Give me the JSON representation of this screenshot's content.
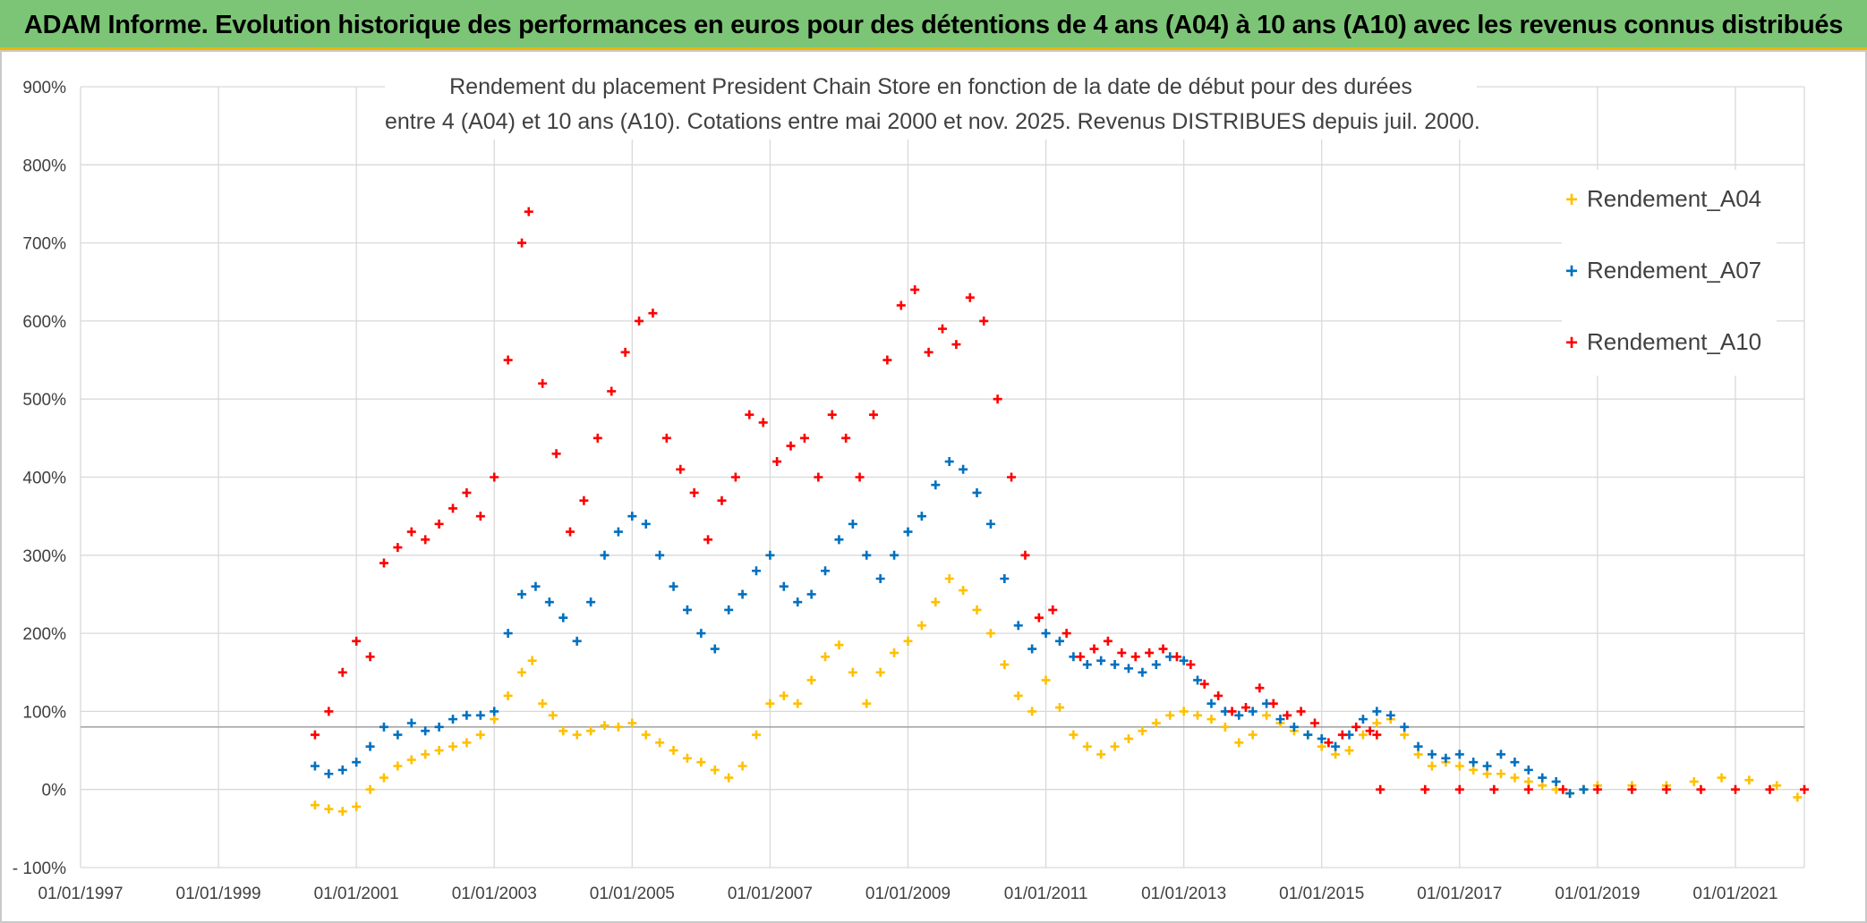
{
  "header": {
    "title": "ADAM Informe. Evolution historique des performances en euros pour des détentions de 4 ans (A04) à 10 ans (A10) avec les revenus connus distribués"
  },
  "chart_data": {
    "type": "scatter",
    "title_lines": [
      "Rendement du placement President Chain Store  en fonction de la date de début pour des durées",
      "entre 4 (A04) et 10 ans (A10). Cotations entre mai 2000 et nov. 2025. Revenus DISTRIBUES depuis juil. 2000."
    ],
    "xlabel": "",
    "ylabel": "",
    "x_tick_labels": [
      "01/01/1997",
      "01/01/1999",
      "01/01/2001",
      "01/01/2003",
      "01/01/2005",
      "01/01/2007",
      "01/01/2009",
      "01/01/2011",
      "01/01/2013",
      "01/01/2015",
      "01/01/2017",
      "01/01/2019",
      "01/01/2021"
    ],
    "y_tick_labels": [
      "- 100%",
      "0%",
      "100%",
      "200%",
      "300%",
      "400%",
      "500%",
      "600%",
      "700%",
      "800%",
      "900%"
    ],
    "xlim": [
      1997.0,
      2022.0
    ],
    "ylim": [
      -100,
      900
    ],
    "grid": true,
    "reference_line_y": 80,
    "legend_position": "right",
    "series": [
      {
        "name": "Rendement_A04",
        "color": "#ffc000",
        "points": [
          [
            2000.4,
            -20
          ],
          [
            2000.6,
            -25
          ],
          [
            2000.8,
            -28
          ],
          [
            2001.0,
            -22
          ],
          [
            2001.2,
            0
          ],
          [
            2001.4,
            15
          ],
          [
            2001.6,
            30
          ],
          [
            2001.8,
            38
          ],
          [
            2002.0,
            45
          ],
          [
            2002.2,
            50
          ],
          [
            2002.4,
            55
          ],
          [
            2002.6,
            60
          ],
          [
            2002.8,
            70
          ],
          [
            2003.0,
            90
          ],
          [
            2003.2,
            120
          ],
          [
            2003.4,
            150
          ],
          [
            2003.55,
            165
          ],
          [
            2003.7,
            110
          ],
          [
            2003.85,
            95
          ],
          [
            2004.0,
            75
          ],
          [
            2004.2,
            70
          ],
          [
            2004.4,
            75
          ],
          [
            2004.6,
            82
          ],
          [
            2004.8,
            80
          ],
          [
            2005.0,
            85
          ],
          [
            2005.2,
            70
          ],
          [
            2005.4,
            60
          ],
          [
            2005.6,
            50
          ],
          [
            2005.8,
            40
          ],
          [
            2006.0,
            35
          ],
          [
            2006.2,
            25
          ],
          [
            2006.4,
            15
          ],
          [
            2006.6,
            30
          ],
          [
            2006.8,
            70
          ],
          [
            2007.0,
            110
          ],
          [
            2007.2,
            120
          ],
          [
            2007.4,
            110
          ],
          [
            2007.6,
            140
          ],
          [
            2007.8,
            170
          ],
          [
            2008.0,
            185
          ],
          [
            2008.2,
            150
          ],
          [
            2008.4,
            110
          ],
          [
            2008.6,
            150
          ],
          [
            2008.8,
            175
          ],
          [
            2009.0,
            190
          ],
          [
            2009.2,
            210
          ],
          [
            2009.4,
            240
          ],
          [
            2009.6,
            270
          ],
          [
            2009.8,
            255
          ],
          [
            2010.0,
            230
          ],
          [
            2010.2,
            200
          ],
          [
            2010.4,
            160
          ],
          [
            2010.6,
            120
          ],
          [
            2010.8,
            100
          ],
          [
            2011.0,
            140
          ],
          [
            2011.2,
            105
          ],
          [
            2011.4,
            70
          ],
          [
            2011.6,
            55
          ],
          [
            2011.8,
            45
          ],
          [
            2012.0,
            55
          ],
          [
            2012.2,
            65
          ],
          [
            2012.4,
            75
          ],
          [
            2012.6,
            85
          ],
          [
            2012.8,
            95
          ],
          [
            2013.0,
            100
          ],
          [
            2013.2,
            95
          ],
          [
            2013.4,
            90
          ],
          [
            2013.6,
            80
          ],
          [
            2013.8,
            60
          ],
          [
            2014.0,
            70
          ],
          [
            2014.2,
            95
          ],
          [
            2014.4,
            85
          ],
          [
            2014.6,
            75
          ],
          [
            2014.8,
            70
          ],
          [
            2015.0,
            55
          ],
          [
            2015.2,
            45
          ],
          [
            2015.4,
            50
          ],
          [
            2015.6,
            70
          ],
          [
            2015.8,
            85
          ],
          [
            2016.0,
            90
          ],
          [
            2016.2,
            70
          ],
          [
            2016.4,
            45
          ],
          [
            2016.6,
            30
          ],
          [
            2016.8,
            35
          ],
          [
            2017.0,
            30
          ],
          [
            2017.2,
            25
          ],
          [
            2017.4,
            20
          ],
          [
            2017.6,
            20
          ],
          [
            2017.8,
            15
          ],
          [
            2018.0,
            10
          ],
          [
            2018.2,
            5
          ],
          [
            2018.4,
            0
          ],
          [
            2018.6,
            -5
          ],
          [
            2018.8,
            0
          ],
          [
            2019.0,
            5
          ],
          [
            2019.5,
            5
          ],
          [
            2020.0,
            5
          ],
          [
            2020.4,
            10
          ],
          [
            2020.8,
            15
          ],
          [
            2021.2,
            12
          ],
          [
            2021.6,
            5
          ],
          [
            2021.9,
            -10
          ]
        ]
      },
      {
        "name": "Rendement_A07",
        "color": "#0070c0",
        "points": [
          [
            2000.4,
            30
          ],
          [
            2000.6,
            20
          ],
          [
            2000.8,
            25
          ],
          [
            2001.0,
            35
          ],
          [
            2001.2,
            55
          ],
          [
            2001.4,
            80
          ],
          [
            2001.6,
            70
          ],
          [
            2001.8,
            85
          ],
          [
            2002.0,
            75
          ],
          [
            2002.2,
            80
          ],
          [
            2002.4,
            90
          ],
          [
            2002.6,
            95
          ],
          [
            2002.8,
            95
          ],
          [
            2003.0,
            100
          ],
          [
            2003.2,
            200
          ],
          [
            2003.4,
            250
          ],
          [
            2003.6,
            260
          ],
          [
            2003.8,
            240
          ],
          [
            2004.0,
            220
          ],
          [
            2004.2,
            190
          ],
          [
            2004.4,
            240
          ],
          [
            2004.6,
            300
          ],
          [
            2004.8,
            330
          ],
          [
            2005.0,
            350
          ],
          [
            2005.2,
            340
          ],
          [
            2005.4,
            300
          ],
          [
            2005.6,
            260
          ],
          [
            2005.8,
            230
          ],
          [
            2006.0,
            200
          ],
          [
            2006.2,
            180
          ],
          [
            2006.4,
            230
          ],
          [
            2006.6,
            250
          ],
          [
            2006.8,
            280
          ],
          [
            2007.0,
            300
          ],
          [
            2007.2,
            260
          ],
          [
            2007.4,
            240
          ],
          [
            2007.6,
            250
          ],
          [
            2007.8,
            280
          ],
          [
            2008.0,
            320
          ],
          [
            2008.2,
            340
          ],
          [
            2008.4,
            300
          ],
          [
            2008.6,
            270
          ],
          [
            2008.8,
            300
          ],
          [
            2009.0,
            330
          ],
          [
            2009.2,
            350
          ],
          [
            2009.4,
            390
          ],
          [
            2009.6,
            420
          ],
          [
            2009.8,
            410
          ],
          [
            2010.0,
            380
          ],
          [
            2010.2,
            340
          ],
          [
            2010.4,
            270
          ],
          [
            2010.6,
            210
          ],
          [
            2010.8,
            180
          ],
          [
            2011.0,
            200
          ],
          [
            2011.2,
            190
          ],
          [
            2011.4,
            170
          ],
          [
            2011.6,
            160
          ],
          [
            2011.8,
            165
          ],
          [
            2012.0,
            160
          ],
          [
            2012.2,
            155
          ],
          [
            2012.4,
            150
          ],
          [
            2012.6,
            160
          ],
          [
            2012.8,
            170
          ],
          [
            2013.0,
            165
          ],
          [
            2013.2,
            140
          ],
          [
            2013.4,
            110
          ],
          [
            2013.6,
            100
          ],
          [
            2013.8,
            95
          ],
          [
            2014.0,
            100
          ],
          [
            2014.2,
            110
          ],
          [
            2014.4,
            90
          ],
          [
            2014.6,
            80
          ],
          [
            2014.8,
            70
          ],
          [
            2015.0,
            65
          ],
          [
            2015.2,
            55
          ],
          [
            2015.4,
            70
          ],
          [
            2015.6,
            90
          ],
          [
            2015.8,
            100
          ],
          [
            2016.0,
            95
          ],
          [
            2016.2,
            80
          ],
          [
            2016.4,
            55
          ],
          [
            2016.6,
            45
          ],
          [
            2016.8,
            40
          ],
          [
            2017.0,
            45
          ],
          [
            2017.2,
            35
          ],
          [
            2017.4,
            30
          ],
          [
            2017.6,
            45
          ],
          [
            2017.8,
            35
          ],
          [
            2018.0,
            25
          ],
          [
            2018.2,
            15
          ],
          [
            2018.4,
            10
          ],
          [
            2018.6,
            -5
          ],
          [
            2018.8,
            0
          ]
        ]
      },
      {
        "name": "Rendement_A10",
        "color": "#ff0000",
        "points": [
          [
            2000.4,
            70
          ],
          [
            2000.6,
            100
          ],
          [
            2000.8,
            150
          ],
          [
            2001.0,
            190
          ],
          [
            2001.2,
            170
          ],
          [
            2001.4,
            290
          ],
          [
            2001.6,
            310
          ],
          [
            2001.8,
            330
          ],
          [
            2002.0,
            320
          ],
          [
            2002.2,
            340
          ],
          [
            2002.4,
            360
          ],
          [
            2002.6,
            380
          ],
          [
            2002.8,
            350
          ],
          [
            2003.0,
            400
          ],
          [
            2003.2,
            550
          ],
          [
            2003.4,
            700
          ],
          [
            2003.5,
            740
          ],
          [
            2003.7,
            520
          ],
          [
            2003.9,
            430
          ],
          [
            2004.1,
            330
          ],
          [
            2004.3,
            370
          ],
          [
            2004.5,
            450
          ],
          [
            2004.7,
            510
          ],
          [
            2004.9,
            560
          ],
          [
            2005.1,
            600
          ],
          [
            2005.3,
            610
          ],
          [
            2005.5,
            450
          ],
          [
            2005.7,
            410
          ],
          [
            2005.9,
            380
          ],
          [
            2006.1,
            320
          ],
          [
            2006.3,
            370
          ],
          [
            2006.5,
            400
          ],
          [
            2006.7,
            480
          ],
          [
            2006.9,
            470
          ],
          [
            2007.1,
            420
          ],
          [
            2007.3,
            440
          ],
          [
            2007.5,
            450
          ],
          [
            2007.7,
            400
          ],
          [
            2007.9,
            480
          ],
          [
            2008.1,
            450
          ],
          [
            2008.3,
            400
          ],
          [
            2008.5,
            480
          ],
          [
            2008.7,
            550
          ],
          [
            2008.9,
            620
          ],
          [
            2009.1,
            640
          ],
          [
            2009.3,
            560
          ],
          [
            2009.5,
            590
          ],
          [
            2009.7,
            570
          ],
          [
            2009.9,
            630
          ],
          [
            2010.1,
            600
          ],
          [
            2010.3,
            500
          ],
          [
            2010.5,
            400
          ],
          [
            2010.7,
            300
          ],
          [
            2010.9,
            220
          ],
          [
            2011.1,
            230
          ],
          [
            2011.3,
            200
          ],
          [
            2011.5,
            170
          ],
          [
            2011.7,
            180
          ],
          [
            2011.9,
            190
          ],
          [
            2012.1,
            175
          ],
          [
            2012.3,
            170
          ],
          [
            2012.5,
            175
          ],
          [
            2012.7,
            180
          ],
          [
            2012.9,
            170
          ],
          [
            2013.1,
            160
          ],
          [
            2013.3,
            135
          ],
          [
            2013.5,
            120
          ],
          [
            2013.7,
            100
          ],
          [
            2013.9,
            105
          ],
          [
            2014.1,
            130
          ],
          [
            2014.3,
            110
          ],
          [
            2014.5,
            95
          ],
          [
            2014.7,
            100
          ],
          [
            2014.9,
            85
          ],
          [
            2015.1,
            60
          ],
          [
            2015.3,
            70
          ],
          [
            2015.5,
            80
          ],
          [
            2015.7,
            75
          ],
          [
            2015.8,
            70
          ],
          [
            2015.85,
            0
          ],
          [
            2016.5,
            0
          ],
          [
            2017.0,
            0
          ],
          [
            2017.5,
            0
          ],
          [
            2018.0,
            0
          ],
          [
            2018.5,
            0
          ],
          [
            2019.0,
            0
          ],
          [
            2019.5,
            0
          ],
          [
            2020.0,
            0
          ],
          [
            2020.5,
            0
          ],
          [
            2021.0,
            0
          ],
          [
            2021.5,
            0
          ],
          [
            2022.0,
            0
          ]
        ]
      }
    ]
  }
}
